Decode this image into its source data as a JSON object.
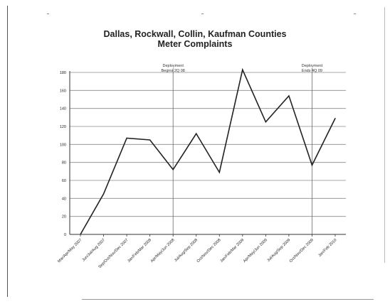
{
  "chart_data": {
    "type": "line",
    "title": "Dallas, Rockwall, Collin, Kaufman Counties",
    "subtitle": "Meter Complaints",
    "xlabel": "",
    "ylabel": "",
    "ylim": [
      0,
      180
    ],
    "yticks": [
      0,
      20,
      40,
      60,
      80,
      100,
      120,
      140,
      160,
      180
    ],
    "grid": true,
    "categories": [
      "Mar/Apr/May 2007",
      "Jun/Jul/Aug 2007",
      "Sep/Oct/Nov/Dec 2007",
      "Jan/Feb/Mar 2008",
      "Apr/May/Jun 2008",
      "Jul/Aug/Sep 2008",
      "Oct/Nov/Dec 2008",
      "Jan/Feb/Mar 2009",
      "Apr/May/Jun 2009",
      "Jul/Aug/Sep 2009",
      "Oct/Nov/Dec 2009",
      "Jan/Feb 2010"
    ],
    "series": [
      {
        "values": [
          0,
          45,
          107,
          105,
          72,
          112,
          69,
          183,
          125,
          154,
          77,
          129
        ]
      }
    ],
    "line_color": "#222222",
    "annotations": [
      {
        "text_lines": [
          "Deployment",
          "Begins 2Q 08"
        ],
        "after_category_index": 4
      },
      {
        "text_lines": [
          "Deployment",
          "Ends 4Q 09"
        ],
        "after_category_index": 10
      }
    ]
  }
}
